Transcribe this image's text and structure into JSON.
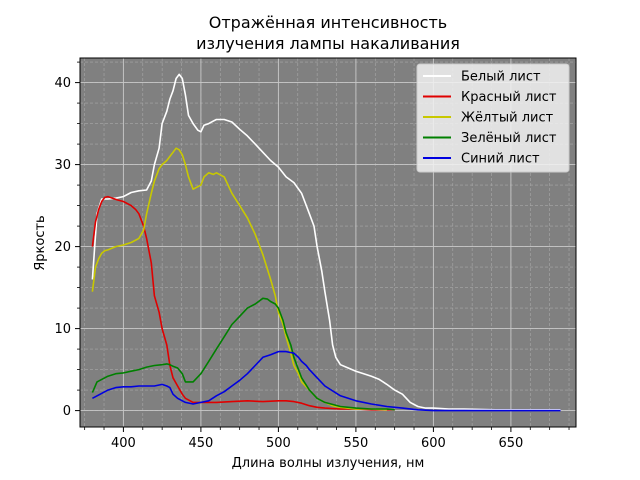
{
  "chart_data": {
    "type": "line",
    "title_line1": "Отражённая интенсивность",
    "title_line2": "излучения лампы накаливания",
    "xlabel": "Длина волны излучения, нм",
    "ylabel": "Яркость",
    "xlim": [
      372,
      692
    ],
    "ylim": [
      -2,
      43
    ],
    "xticks": [
      400,
      450,
      500,
      550,
      600,
      650
    ],
    "yticks": [
      0,
      10,
      20,
      30,
      40
    ],
    "background": "#808080",
    "grid": true,
    "legend_position": "upper right",
    "series": [
      {
        "name": "Белый лист",
        "color": "#ffffff",
        "x": [
          380,
          383,
          386,
          390,
          395,
          400,
          405,
          410,
          415,
          418,
          420,
          423,
          425,
          428,
          430,
          432,
          434,
          436,
          438,
          440,
          442,
          445,
          448,
          450,
          452,
          455,
          458,
          460,
          465,
          470,
          475,
          480,
          485,
          490,
          495,
          500,
          505,
          510,
          515,
          518,
          520,
          523,
          525,
          528,
          530,
          533,
          535,
          537,
          540,
          545,
          550,
          555,
          560,
          565,
          570,
          575,
          580,
          585,
          590,
          595,
          600,
          610,
          620,
          640,
          660,
          682
        ],
        "values": [
          16,
          24,
          25.8,
          25.8,
          25.9,
          26.1,
          26.6,
          26.8,
          26.9,
          28,
          30,
          32,
          35,
          36.5,
          38,
          39,
          40.5,
          41,
          40.5,
          38.5,
          36,
          35,
          34.2,
          34,
          34.8,
          35,
          35.3,
          35.5,
          35.5,
          35.2,
          34.3,
          33.5,
          32.5,
          31.5,
          30.5,
          29.7,
          28.5,
          27.8,
          26.5,
          25,
          24,
          22.5,
          20,
          17,
          14.5,
          11,
          8,
          6.5,
          5.6,
          5.2,
          4.8,
          4.5,
          4.2,
          3.8,
          3.2,
          2.5,
          2,
          1,
          0.5,
          0.3,
          0.3,
          0.2,
          0.2,
          0.1,
          0.1,
          0.1
        ]
      },
      {
        "name": "Красный лист",
        "color": "#e00000",
        "x": [
          380,
          382,
          384,
          386,
          388,
          390,
          393,
          396,
          400,
          405,
          408,
          410,
          413,
          415,
          418,
          420,
          423,
          425,
          428,
          430,
          432,
          435,
          438,
          440,
          443,
          445,
          450,
          460,
          470,
          480,
          490,
          500,
          505,
          510,
          515,
          520,
          525,
          530,
          540,
          550,
          560,
          570,
          575
        ],
        "values": [
          20,
          23,
          24.5,
          25.5,
          26,
          26.1,
          25.9,
          25.7,
          25.5,
          25,
          24.5,
          24,
          22.5,
          21,
          18,
          14,
          12,
          10,
          8,
          5.5,
          4,
          3,
          2,
          1.5,
          1.2,
          1.0,
          1.0,
          1.0,
          1.1,
          1.2,
          1.1,
          1.2,
          1.2,
          1.1,
          0.9,
          0.6,
          0.4,
          0.3,
          0.2,
          0.2,
          0.1,
          0.1,
          0.1
        ]
      },
      {
        "name": "Жёлтый лист",
        "color": "#c8c800",
        "x": [
          380,
          382,
          384,
          386,
          388,
          390,
          395,
          400,
          405,
          410,
          413,
          415,
          418,
          420,
          423,
          425,
          428,
          430,
          432,
          434,
          436,
          438,
          440,
          442,
          445,
          448,
          450,
          452,
          455,
          458,
          460,
          465,
          470,
          475,
          480,
          485,
          490,
          495,
          498,
          500,
          503,
          505,
          508,
          510,
          513,
          515,
          520,
          525,
          530,
          535,
          540,
          550,
          560,
          570
        ],
        "values": [
          14.5,
          17.5,
          18.5,
          19.2,
          19.5,
          19.6,
          20,
          20.2,
          20.5,
          21,
          22,
          24,
          26.5,
          28,
          29.5,
          30,
          30.5,
          31,
          31.5,
          32,
          31.8,
          31.2,
          30,
          28.5,
          27,
          27.3,
          27.5,
          28.5,
          29,
          28.8,
          29,
          28.5,
          26.5,
          25,
          23.5,
          21.5,
          19,
          16,
          14,
          12,
          10.5,
          9,
          7,
          5.5,
          4.5,
          3.5,
          2.5,
          1.5,
          1.0,
          0.6,
          0.4,
          0.2,
          0.2,
          0.1
        ]
      },
      {
        "name": "Зелёный лист",
        "color": "#008000",
        "x": [
          380,
          383,
          386,
          390,
          395,
          400,
          405,
          410,
          415,
          420,
          425,
          428,
          430,
          432,
          435,
          438,
          440,
          445,
          450,
          455,
          460,
          465,
          470,
          475,
          480,
          485,
          490,
          493,
          495,
          498,
          500,
          503,
          505,
          508,
          510,
          513,
          515,
          520,
          525,
          530,
          540,
          550,
          560,
          570,
          575
        ],
        "values": [
          2.2,
          3.5,
          3.8,
          4.2,
          4.5,
          4.6,
          4.8,
          5,
          5.3,
          5.5,
          5.6,
          5.7,
          5.6,
          5.4,
          5.2,
          4.5,
          3.5,
          3.5,
          4.5,
          6,
          7.5,
          9,
          10.5,
          11.5,
          12.5,
          13,
          13.7,
          13.6,
          13.3,
          13,
          12.5,
          11,
          9.5,
          8,
          6.5,
          5,
          4,
          2.5,
          1.5,
          1.0,
          0.5,
          0.3,
          0.2,
          0.2,
          0.1
        ]
      },
      {
        "name": "Синий лист",
        "color": "#0000e0",
        "x": [
          380,
          385,
          390,
          395,
          400,
          405,
          410,
          415,
          420,
          425,
          428,
          430,
          432,
          435,
          440,
          445,
          450,
          455,
          460,
          465,
          470,
          475,
          480,
          485,
          490,
          495,
          500,
          505,
          510,
          513,
          515,
          518,
          520,
          525,
          530,
          540,
          550,
          560,
          570,
          580,
          590,
          600,
          620,
          640,
          660,
          682
        ],
        "values": [
          1.5,
          2.0,
          2.5,
          2.8,
          2.9,
          2.9,
          3.0,
          3.0,
          3.0,
          3.2,
          3.0,
          2.8,
          2.0,
          1.5,
          1.0,
          0.8,
          1.0,
          1.2,
          1.8,
          2.3,
          3.0,
          3.7,
          4.5,
          5.5,
          6.5,
          6.8,
          7.2,
          7.2,
          7.0,
          6.5,
          6.0,
          5.5,
          5.0,
          4.0,
          3.0,
          1.8,
          1.2,
          0.8,
          0.5,
          0.3,
          0.1,
          0.0,
          0.0,
          0.0,
          0.0,
          0.0
        ]
      }
    ]
  }
}
